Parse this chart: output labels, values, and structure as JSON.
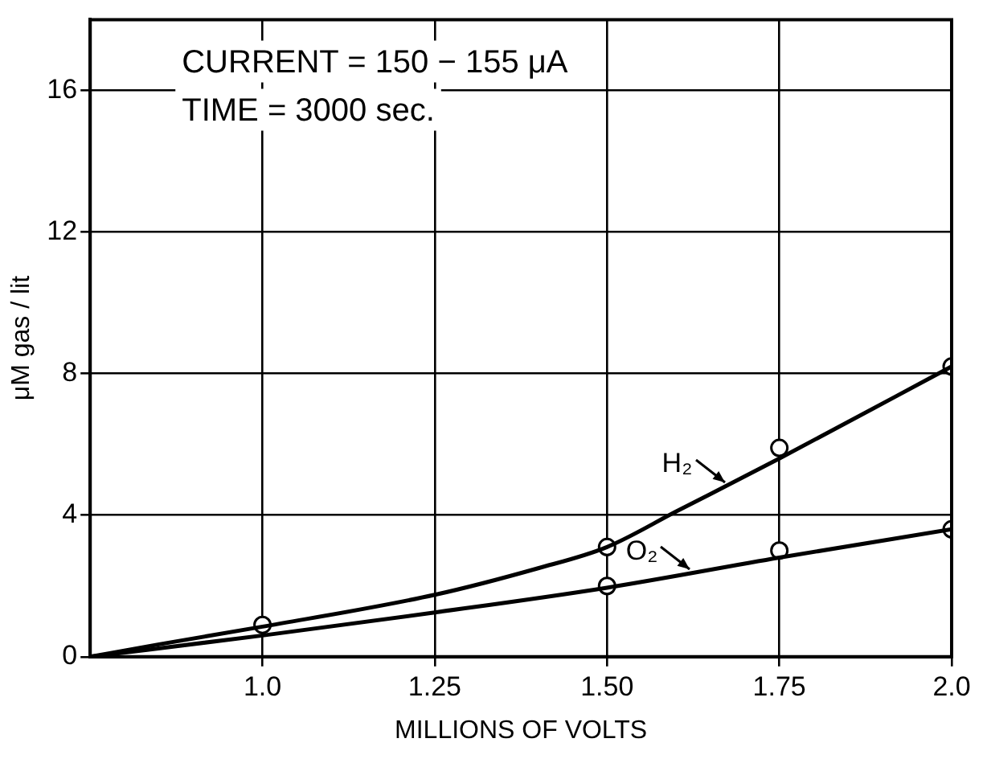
{
  "chart_data": {
    "type": "line",
    "xlabel": "MILLIONS OF VOLTS",
    "ylabel": "μM gas / lit",
    "annotations": [
      "CURRENT = 150 − 155 μA",
      "TIME = 3000 sec."
    ],
    "xlim": [
      0.75,
      2.0
    ],
    "xticks": [
      {
        "value": 1.0,
        "label": "1.0"
      },
      {
        "value": 1.25,
        "label": "1.25"
      },
      {
        "value": 1.5,
        "label": "1.50"
      },
      {
        "value": 1.75,
        "label": "1.75"
      },
      {
        "value": 2.0,
        "label": "2.0"
      }
    ],
    "ylim": [
      0,
      18
    ],
    "yticks": [
      0,
      4,
      8,
      12,
      16
    ],
    "grid": true,
    "legend": "bottom right",
    "line_style": "solid",
    "series": [
      {
        "name": "H₂",
        "color": "#000000",
        "marker": "none",
        "x": [
          0.75,
          0.85,
          1.0,
          1.25,
          1.4,
          1.5,
          1.6,
          1.75,
          2.0
        ],
        "values": [
          0,
          0.35,
          0.85,
          1.75,
          2.5,
          3.1,
          4.1,
          5.6,
          8.2
        ]
      },
      {
        "name": "O₂",
        "color": "#000000",
        "marker": "none",
        "x": [
          0.75,
          1.0,
          1.25,
          1.5,
          1.75,
          2.0
        ],
        "values": [
          0,
          0.6,
          1.25,
          1.95,
          2.8,
          3.6
        ]
      },
      {
        "type": "scatter",
        "color": "#000000",
        "marker": "circle",
        "x": [
          1.0,
          1.5,
          1.75,
          2.0
        ],
        "values": [
          0.9,
          3.1,
          5.9,
          8.2
        ]
      },
      {
        "type": "scatter",
        "color": "#000000",
        "marker": "circle",
        "x": [
          1.5,
          1.75,
          2.0
        ],
        "values": [
          2.0,
          3.0,
          3.6
        ]
      }
    ]
  }
}
